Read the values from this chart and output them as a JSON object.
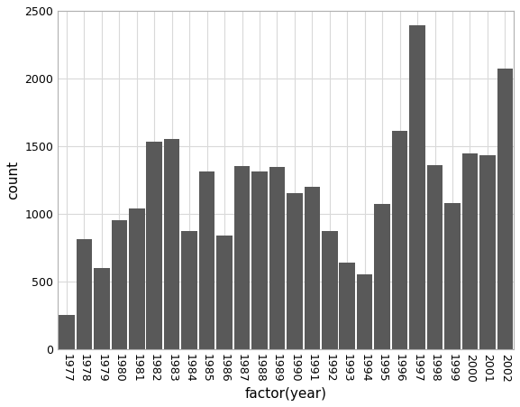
{
  "years": [
    "1977",
    "1978",
    "1979",
    "1980",
    "1981",
    "1982",
    "1983",
    "1984",
    "1985",
    "1986",
    "1987",
    "1988",
    "1989",
    "1990",
    "1991",
    "1992",
    "1993",
    "1994",
    "1995",
    "1996",
    "1997",
    "1998",
    "1999",
    "2000",
    "2001",
    "2002"
  ],
  "counts": [
    255,
    810,
    600,
    950,
    1040,
    1535,
    1550,
    870,
    1310,
    840,
    1350,
    1315,
    1345,
    1150,
    1200,
    875,
    640,
    550,
    1075,
    1610,
    2390,
    1360,
    1080,
    1445,
    1430,
    2070
  ],
  "bar_color": "#595959",
  "xlabel": "factor(year)",
  "ylabel": "count",
  "ylim": [
    0,
    2500
  ],
  "yticks": [
    0,
    500,
    1000,
    1500,
    2000,
    2500
  ],
  "background_color": "#ffffff",
  "grid_color": "#d9d9d9",
  "xlabel_fontsize": 11,
  "ylabel_fontsize": 11,
  "tick_fontsize": 9,
  "xtick_rotation": -90,
  "spine_color": "#b0b0b0",
  "figsize": [
    5.77,
    4.51
  ],
  "dpi": 100
}
